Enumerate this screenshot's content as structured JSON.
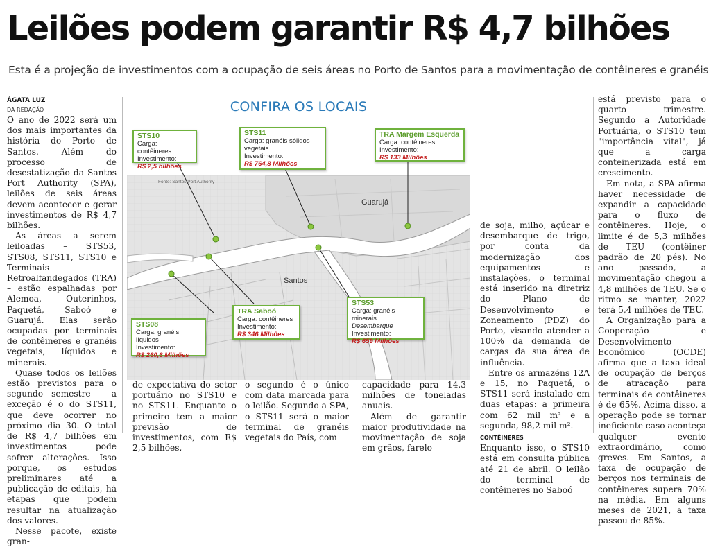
{
  "headline": "Leilões podem garantir R$ 4,7 bilhões",
  "subhead": "Esta é a projeção de investimentos com a ocupação de seis áreas no Porto de Santos para a movimentação de contêineres e granéis",
  "byline": "ÁGATA LUZ",
  "byline_role": "DA REDAÇÃO",
  "col1": [
    "O ano de 2022 será um dos mais importantes da história do Porto de Santos. Além do processo de desestatização da Santos Port Authority (SPA), leilões de seis áreas devem acontecer e gerar investimentos de R$ 4,7 bilhões.",
    "As áreas a serem leiloadas – STS53, STS08, STS11, STS10 e Terminais Retroalfandegados (TRA) – estão espalhadas por Alemoa, Outerinhos, Paquetá, Saboó e Guarujá. Elas serão ocupadas por terminais de contêineres e granéis vegetais, líquidos e minerais.",
    "Quase todos os leilões estão previstos para o segundo semestre – a exceção é o do STS11, que deve ocorrer no próximo dia 30. O total de R$ 4,7 bilhões em investimentos pode sofrer alterações. Isso porque, os estudos preliminares até a publicação de editais, há etapas que podem resultar na atualização dos valores.",
    "Nesse pacote, existe gran-"
  ],
  "col2": "de expectativa do setor portuário no STS10 e no STS11. Enquanto o primeiro tem a maior previsão de investimentos, com R$ 2,5 bilhões,",
  "col3": "o segundo é o único com data marcada para o leilão. Segundo a SPA, o STS11 será o maior terminal de granéis vegetais do País, com",
  "col4": [
    "capacidade para 14,3 milhões de toneladas anuais.",
    "Além de garantir maior produtividade na movimentação de soja em grãos, farelo"
  ],
  "col5": [
    "de soja, milho, açúcar e desembarque de trigo, por conta da modernização dos equipamentos e instalações, o terminal está inserido na diretriz do Plano de Desenvolvimento e Zoneamento (PDZ) do Porto, visando atender a 100% da demanda de cargas da sua área de influência.",
    "Entre os armazéns 12A e 15, no Paquetá, o STS11 será instalado em duas etapas: a primeira com 62 mil m² e a segunda, 98,2 mil m²."
  ],
  "section_label": "CONTÊINERES",
  "col5b": "Enquanto isso, o STS10 está em consulta pública até 21 de abril. O leilão do terminal de contêineres no Saboó",
  "col6": [
    "está previsto para o quarto trimestre. Segundo a Autoridade Portuária, o STS10 tem \"importância vital\", já que a carga conteinerizada está em crescimento.",
    "Em nota, a SPA afirma haver necessidade de expandir a capacidade para o fluxo de contêineres. Hoje, o limite é de 5,3 milhões de TEU (contêiner padrão de 20 pés). No ano passado, a movimentação chegou a 4,8 milhões de TEU. Se o ritmo se manter, 2022 terá 5,4 milhões de TEU.",
    "A Organização para a Cooperação e Desenvolvimento Econômico (OCDE) afirma que a taxa ideal de ocupação de berços de atracação para terminais de contêineres é de 65%. Acima disso, a operação pode se tornar ineficiente caso aconteça qualquer evento extraordinário, como greves. Em Santos, a taxa de ocupação de berços nos terminais de contêineres supera 70% na média. Em alguns meses de 2021, a taxa passou de 85%."
  ],
  "infographic": {
    "title": "CONFIRA OS LOCAIS",
    "source": "Fonte: Santos Port Authority",
    "place_guaruja": "Guarujá",
    "place_santos": "Santos",
    "accent_color": "#6fb23d",
    "value_color": "#c21d1d",
    "cards": {
      "sts10": {
        "code": "STS10",
        "cargo": "Carga: contêineres",
        "inv": "Investimento:",
        "value": "R$ 2,5 bilhões"
      },
      "sts11": {
        "code": "STS11",
        "cargo": "Carga: granéis sólidos vegetais",
        "inv": "Investimento:",
        "value": "R$ 764,8 Milhões"
      },
      "tra_me": {
        "code": "TRA Margem Esquerda",
        "cargo": "Carga: contêineres",
        "inv": "Investimento:",
        "value": "R$ 133 Milhões"
      },
      "tra_saboo": {
        "code": "TRA Saboó",
        "cargo": "Carga: contêineres",
        "inv": "Investimento:",
        "value": "R$ 346 Milhões"
      },
      "sts53": {
        "code": "STS53",
        "cargo": "Carga: granéis minerais",
        "cargo2": "Desembarque",
        "inv": "Investimento:",
        "value": "R$ 659 Milhões"
      },
      "sts08": {
        "code": "STS08",
        "cargo": "Carga: granéis líquidos",
        "inv": "Investimento:",
        "value": "R$ 260,6 Milhões"
      }
    }
  }
}
